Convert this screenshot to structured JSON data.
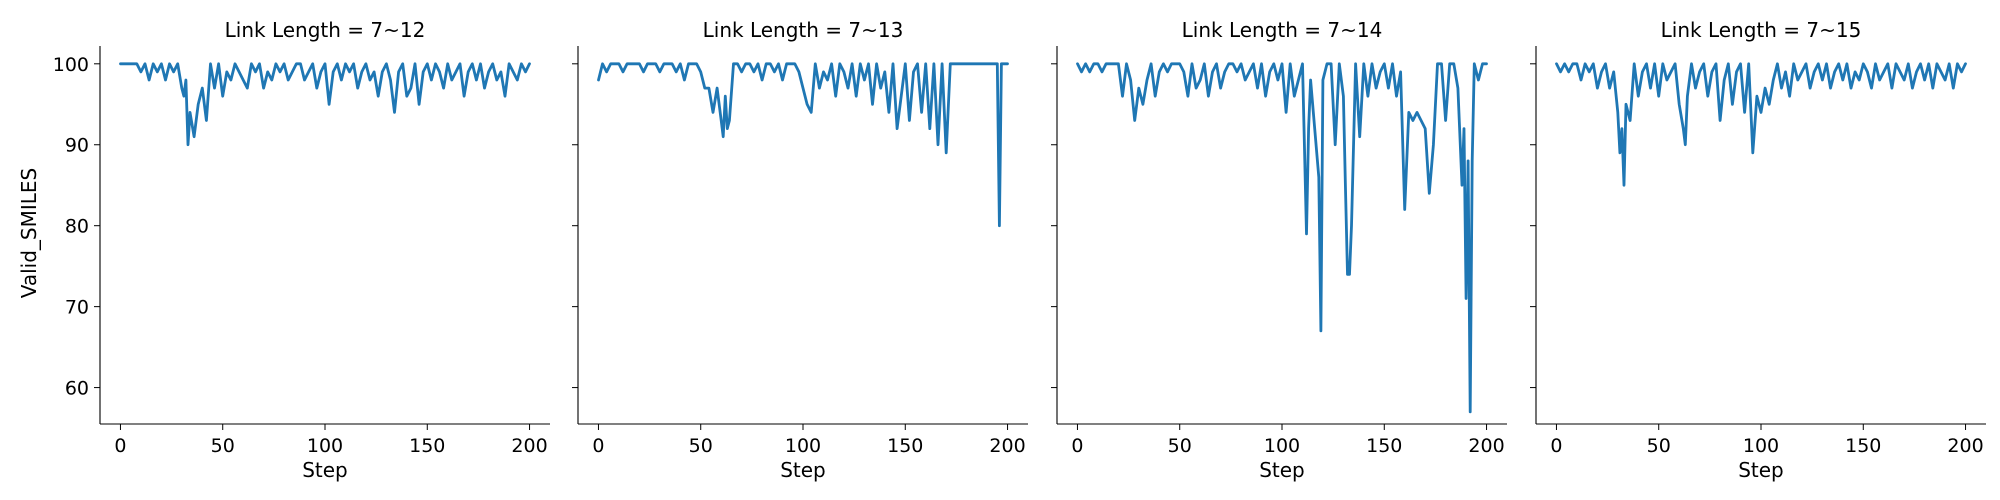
{
  "chart_data": [
    {
      "type": "line",
      "title": "Link Length = 7~12",
      "xlabel": "Step",
      "ylabel": "Valid_SMILES",
      "xlim": [
        -10,
        210
      ],
      "ylim": [
        55.5,
        102.2
      ],
      "xticks": [
        0,
        50,
        100,
        150,
        200
      ],
      "yticks": [
        60,
        70,
        80,
        90,
        100
      ],
      "color": "#1f77b4",
      "x": [
        0,
        2,
        4,
        6,
        8,
        10,
        12,
        14,
        16,
        18,
        20,
        22,
        24,
        26,
        28,
        30,
        31,
        32,
        33,
        34,
        36,
        38,
        40,
        42,
        44,
        46,
        48,
        50,
        52,
        54,
        56,
        58,
        60,
        62,
        64,
        66,
        68,
        70,
        72,
        74,
        76,
        78,
        80,
        82,
        84,
        86,
        88,
        90,
        92,
        94,
        96,
        98,
        100,
        102,
        104,
        106,
        108,
        110,
        112,
        114,
        116,
        118,
        120,
        122,
        124,
        126,
        128,
        130,
        132,
        134,
        136,
        138,
        140,
        142,
        144,
        146,
        148,
        150,
        152,
        154,
        156,
        158,
        160,
        162,
        164,
        166,
        168,
        170,
        172,
        174,
        176,
        178,
        180,
        182,
        184,
        186,
        188,
        190,
        192,
        194,
        196,
        198,
        200
      ],
      "values": [
        100,
        100,
        100,
        100,
        100,
        99,
        100,
        98,
        100,
        99,
        100,
        98,
        100,
        99,
        100,
        97,
        96,
        98,
        90,
        94,
        91,
        95,
        97,
        93,
        100,
        97,
        100,
        96,
        99,
        98,
        100,
        99,
        98,
        97,
        100,
        99,
        100,
        97,
        99,
        98,
        100,
        99,
        100,
        98,
        99,
        100,
        100,
        98,
        99,
        100,
        97,
        99,
        100,
        95,
        99,
        100,
        98,
        100,
        99,
        100,
        97,
        99,
        100,
        98,
        99,
        96,
        99,
        100,
        98,
        94,
        99,
        100,
        96,
        97,
        100,
        95,
        99,
        100,
        98,
        100,
        99,
        97,
        100,
        98,
        99,
        100,
        96,
        99,
        100,
        98,
        100,
        97,
        99,
        100,
        98,
        99,
        96,
        100,
        99,
        98,
        100,
        99,
        100
      ]
    },
    {
      "type": "line",
      "title": "Link Length = 7~13",
      "xlabel": "Step",
      "ylabel": "",
      "xlim": [
        -10,
        210
      ],
      "ylim": [
        55.5,
        102.2
      ],
      "xticks": [
        0,
        50,
        100,
        150,
        200
      ],
      "yticks": [
        60,
        70,
        80,
        90,
        100
      ],
      "color": "#1f77b4",
      "x": [
        0,
        2,
        4,
        6,
        8,
        10,
        12,
        14,
        16,
        18,
        20,
        22,
        24,
        26,
        28,
        30,
        32,
        34,
        36,
        38,
        40,
        42,
        44,
        46,
        48,
        50,
        52,
        54,
        56,
        58,
        60,
        61,
        62,
        63,
        64,
        66,
        68,
        70,
        72,
        74,
        76,
        78,
        80,
        82,
        84,
        86,
        88,
        90,
        92,
        94,
        96,
        98,
        100,
        102,
        104,
        106,
        108,
        110,
        112,
        114,
        116,
        118,
        120,
        122,
        124,
        126,
        128,
        130,
        132,
        134,
        136,
        138,
        140,
        142,
        144,
        146,
        148,
        150,
        152,
        154,
        156,
        158,
        160,
        162,
        164,
        166,
        168,
        170,
        172,
        174,
        176,
        178,
        180,
        182,
        184,
        186,
        188,
        190,
        192,
        194,
        195,
        196,
        197,
        198,
        200
      ],
      "values": [
        98,
        100,
        99,
        100,
        100,
        100,
        99,
        100,
        100,
        100,
        100,
        99,
        100,
        100,
        100,
        99,
        100,
        100,
        100,
        99,
        100,
        98,
        100,
        100,
        100,
        99,
        97,
        97,
        94,
        97,
        93,
        91,
        96,
        92,
        93,
        100,
        100,
        99,
        100,
        100,
        99,
        100,
        98,
        100,
        100,
        99,
        100,
        98,
        100,
        100,
        100,
        99,
        97,
        95,
        94,
        100,
        97,
        99,
        98,
        100,
        96,
        100,
        99,
        97,
        100,
        96,
        100,
        98,
        100,
        95,
        100,
        97,
        99,
        94,
        100,
        92,
        96,
        100,
        93,
        99,
        100,
        94,
        100,
        92,
        100,
        90,
        100,
        89,
        100,
        100,
        100,
        100,
        100,
        100,
        100,
        100,
        100,
        100,
        100,
        100,
        100,
        80,
        100,
        100,
        100
      ]
    },
    {
      "type": "line",
      "title": "Link Length = 7~14",
      "xlabel": "Step",
      "ylabel": "",
      "xlim": [
        -10,
        210
      ],
      "ylim": [
        55.5,
        102.2
      ],
      "xticks": [
        0,
        50,
        100,
        150,
        200
      ],
      "yticks": [
        60,
        70,
        80,
        90,
        100
      ],
      "color": "#1f77b4",
      "x": [
        0,
        2,
        4,
        6,
        8,
        10,
        12,
        14,
        16,
        18,
        20,
        22,
        24,
        26,
        28,
        30,
        32,
        34,
        36,
        38,
        40,
        42,
        44,
        46,
        48,
        50,
        52,
        54,
        56,
        58,
        60,
        62,
        64,
        66,
        68,
        70,
        72,
        74,
        76,
        78,
        80,
        82,
        84,
        86,
        88,
        90,
        92,
        94,
        96,
        98,
        100,
        102,
        104,
        106,
        108,
        110,
        112,
        113,
        114,
        116,
        118,
        119,
        120,
        122,
        124,
        126,
        128,
        130,
        131,
        132,
        133,
        134,
        136,
        138,
        140,
        142,
        144,
        146,
        148,
        150,
        152,
        154,
        156,
        158,
        160,
        162,
        164,
        166,
        168,
        170,
        172,
        174,
        176,
        178,
        180,
        182,
        184,
        186,
        188,
        189,
        190,
        191,
        192,
        193,
        194,
        196,
        198,
        200
      ],
      "values": [
        100,
        99,
        100,
        99,
        100,
        100,
        99,
        100,
        100,
        100,
        100,
        96,
        100,
        98,
        93,
        97,
        95,
        98,
        100,
        96,
        99,
        100,
        99,
        100,
        100,
        100,
        99,
        96,
        100,
        97,
        98,
        100,
        96,
        99,
        100,
        97,
        99,
        100,
        100,
        99,
        100,
        98,
        99,
        100,
        97,
        100,
        96,
        99,
        100,
        98,
        100,
        94,
        100,
        96,
        98,
        100,
        79,
        92,
        98,
        92,
        86,
        67,
        98,
        100,
        100,
        90,
        100,
        96,
        85,
        74,
        74,
        80,
        100,
        91,
        100,
        96,
        100,
        97,
        99,
        100,
        97,
        100,
        96,
        99,
        82,
        94,
        93,
        94,
        93,
        92,
        84,
        90,
        100,
        100,
        93,
        100,
        100,
        97,
        85,
        92,
        71,
        88,
        57,
        88,
        100,
        98,
        100,
        100
      ]
    },
    {
      "type": "line",
      "title": "Link Length = 7~15",
      "xlabel": "Step",
      "ylabel": "",
      "xlim": [
        -10,
        210
      ],
      "ylim": [
        55.5,
        102.2
      ],
      "xticks": [
        0,
        50,
        100,
        150,
        200
      ],
      "yticks": [
        60,
        70,
        80,
        90,
        100
      ],
      "color": "#1f77b4",
      "x": [
        0,
        2,
        4,
        6,
        8,
        10,
        12,
        14,
        16,
        18,
        20,
        22,
        24,
        26,
        28,
        30,
        31,
        32,
        33,
        34,
        36,
        38,
        40,
        42,
        44,
        46,
        48,
        50,
        52,
        54,
        56,
        58,
        60,
        62,
        63,
        64,
        66,
        68,
        70,
        72,
        74,
        76,
        78,
        80,
        82,
        84,
        86,
        88,
        90,
        92,
        94,
        96,
        98,
        100,
        102,
        104,
        106,
        108,
        110,
        112,
        114,
        116,
        118,
        120,
        122,
        124,
        126,
        128,
        130,
        132,
        134,
        136,
        138,
        140,
        142,
        144,
        146,
        148,
        150,
        152,
        154,
        156,
        158,
        160,
        162,
        164,
        166,
        168,
        170,
        172,
        174,
        176,
        178,
        180,
        182,
        184,
        186,
        188,
        190,
        192,
        194,
        196,
        198,
        200
      ],
      "values": [
        100,
        99,
        100,
        99,
        100,
        100,
        98,
        100,
        99,
        100,
        97,
        99,
        100,
        97,
        99,
        94,
        89,
        92,
        85,
        95,
        93,
        100,
        96,
        99,
        100,
        97,
        100,
        96,
        100,
        98,
        99,
        100,
        95,
        92,
        90,
        96,
        100,
        97,
        99,
        100,
        96,
        99,
        100,
        93,
        98,
        100,
        95,
        99,
        100,
        94,
        100,
        89,
        96,
        94,
        97,
        95,
        98,
        100,
        97,
        99,
        96,
        100,
        98,
        99,
        100,
        97,
        99,
        100,
        98,
        100,
        97,
        99,
        100,
        98,
        100,
        97,
        99,
        98,
        100,
        99,
        97,
        100,
        98,
        99,
        100,
        97,
        100,
        99,
        98,
        100,
        97,
        99,
        100,
        98,
        100,
        97,
        100,
        99,
        98,
        100,
        97,
        100,
        99,
        100
      ]
    }
  ]
}
